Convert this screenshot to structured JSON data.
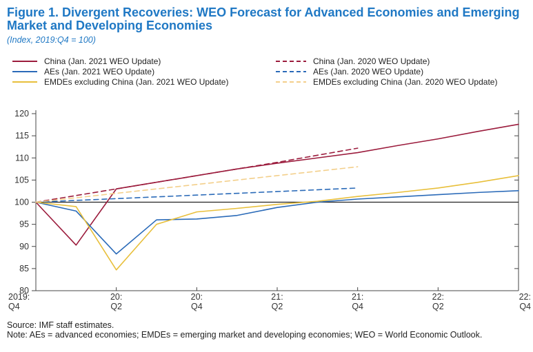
{
  "chart_data": {
    "type": "line",
    "title": "Figure 1.  Divergent Recoveries: WEO Forecast for Advanced Economies and Emerging Market and Developing Economies",
    "subtitle": "(Index, 2019:Q4 = 100)",
    "ylim": [
      80,
      120
    ],
    "yticks": [
      80,
      85,
      90,
      95,
      100,
      105,
      110,
      115,
      120
    ],
    "ytick_labels": [
      "80",
      "85",
      "90",
      "95",
      "100",
      "105",
      "110",
      "115",
      "120"
    ],
    "x_ticks": [
      {
        "x": 0,
        "line1": "2019:",
        "line2": "Q4"
      },
      {
        "x": 2,
        "line1": "20:",
        "line2": "Q2"
      },
      {
        "x": 4,
        "line1": "20:",
        "line2": "Q4"
      },
      {
        "x": 6,
        "line1": "21:",
        "line2": "Q2"
      },
      {
        "x": 8,
        "line1": "21:",
        "line2": "Q4"
      },
      {
        "x": 10,
        "line1": "22:",
        "line2": "Q2"
      },
      {
        "x": 12,
        "line1": "22:",
        "line2": "Q4"
      }
    ],
    "xlim": [
      0,
      12
    ],
    "reference_line": 100,
    "series": [
      {
        "name": "China (Jan. 2021 WEO Update)",
        "color": "#9b1b3c",
        "dash": "solid",
        "x": [
          0,
          1,
          2,
          3,
          4,
          5,
          6,
          7,
          8,
          9,
          10,
          11,
          12
        ],
        "values": [
          100,
          90.3,
          103,
          104.5,
          106,
          107.5,
          108.8,
          110,
          111.2,
          112.8,
          114.3,
          116,
          117.6
        ]
      },
      {
        "name": "China (Jan. 2020 WEO Update)",
        "color": "#9b1b3c",
        "dash": "dashed",
        "x": [
          0,
          2,
          4,
          6,
          8
        ],
        "values": [
          100,
          103,
          106,
          109,
          112.2
        ]
      },
      {
        "name": "AEs (Jan. 2021 WEO Update)",
        "color": "#2a6ab8",
        "dash": "solid",
        "x": [
          0,
          1,
          2,
          3,
          4,
          5,
          6,
          7,
          8,
          9,
          10,
          11,
          12
        ],
        "values": [
          100,
          98,
          88.3,
          96,
          96.2,
          97,
          98.8,
          100,
          100.7,
          101.2,
          101.7,
          102.2,
          102.6
        ]
      },
      {
        "name": "AEs (Jan. 2020 WEO Update)",
        "color": "#2a6ab8",
        "dash": "dashed",
        "x": [
          0,
          2,
          4,
          6,
          8
        ],
        "values": [
          100,
          100.8,
          101.6,
          102.4,
          103.2
        ]
      },
      {
        "name": "EMDEs excluding China (Jan. 2021 WEO Update)",
        "color": "#e8bf3a",
        "dash": "solid",
        "x": [
          0,
          1,
          2,
          3,
          4,
          5,
          6,
          7,
          8,
          9,
          10,
          11,
          12
        ],
        "values": [
          100,
          99,
          84.7,
          95,
          97.8,
          98.6,
          99.5,
          100.2,
          101.3,
          102.2,
          103.2,
          104.5,
          106
        ]
      },
      {
        "name": "EMDEs excluding China (Jan. 2020 WEO Update)",
        "color": "#f3cf8a",
        "dash": "dashed",
        "x": [
          0,
          2,
          4,
          6,
          8
        ],
        "values": [
          100,
          102,
          104,
          106,
          108
        ]
      }
    ],
    "source": "Source: IMF staff estimates.",
    "note": "Note: AEs = advanced economies; EMDEs = emerging market and developing economies; WEO = World Economic Outlook."
  }
}
